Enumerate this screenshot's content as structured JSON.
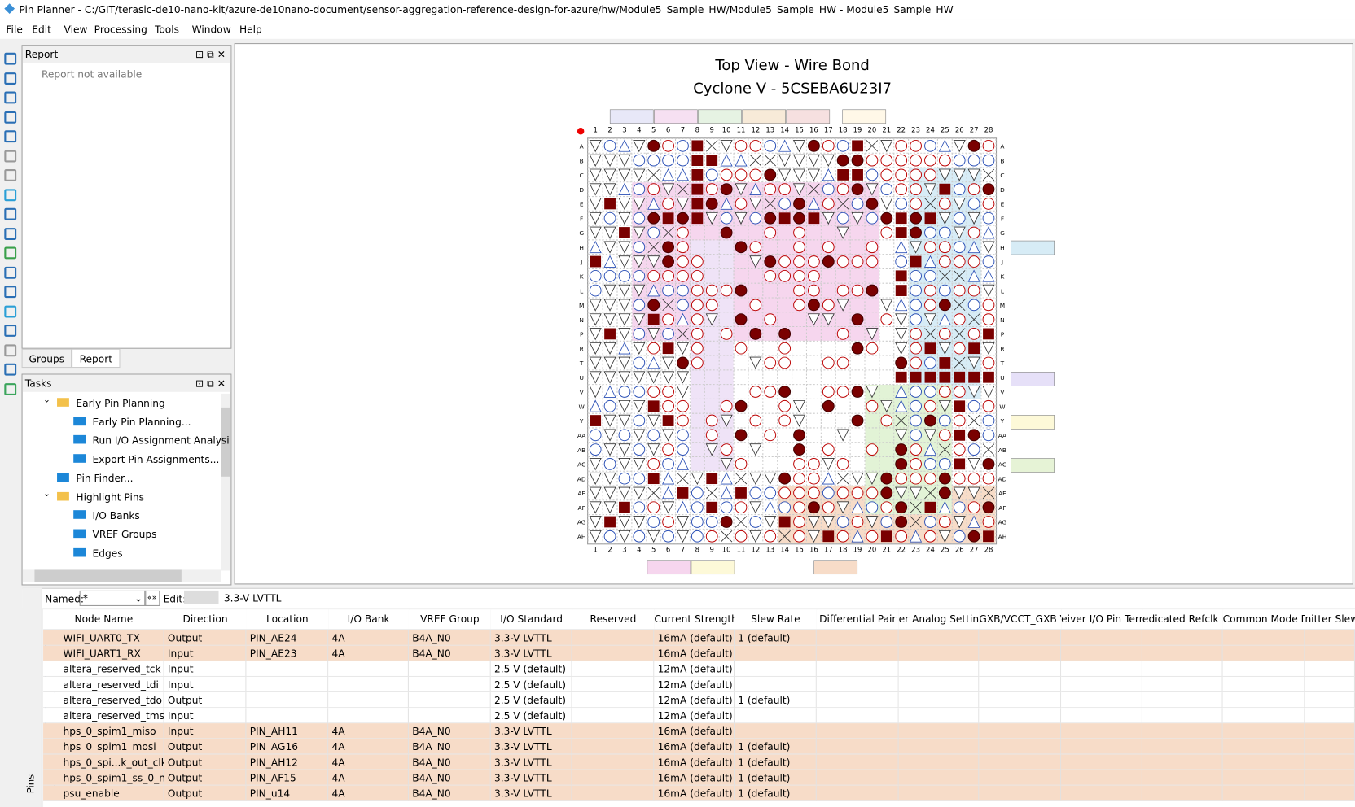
{
  "title_bar": "Pin Planner - C:/GIT/terasic-de10-nano-kit/azure-de10nano-document/sensor-aggregation-reference-design-for-azure/hw/Module5_Sample_HW/Module5_Sample_HW - Module5_Sample_HW",
  "menu": [
    "File",
    "Edit",
    "View",
    "Processing",
    "Tools",
    "Window",
    "Help"
  ],
  "report_panel": {
    "title": "Report",
    "message": "Report not available",
    "tabs": [
      "Groups",
      "Report"
    ]
  },
  "tasks_panel": {
    "title": "Tasks",
    "items": [
      {
        "label": "Early Pin Planning",
        "children": [
          "Early Pin Planning...",
          "Run I/O Assignment Analysi",
          "Export Pin Assignments..."
        ]
      },
      {
        "label": "Pin Finder..."
      },
      {
        "label": "Highlight Pins",
        "children": [
          "I/O Banks",
          "VREF Groups",
          "Edges"
        ]
      }
    ]
  },
  "package_view": {
    "title": "Top View - Wire Bond",
    "subtitle": "Cyclone V - 5CSEBA6U23I7",
    "columns": [
      "1",
      "2",
      "3",
      "4",
      "5",
      "6",
      "7",
      "8",
      "9",
      "10",
      "11",
      "12",
      "13",
      "14",
      "15",
      "16",
      "17",
      "18",
      "19",
      "20",
      "21",
      "22",
      "23",
      "24",
      "25",
      "26",
      "27",
      "28"
    ],
    "rows": [
      "A",
      "B",
      "C",
      "D",
      "E",
      "F",
      "G",
      "H",
      "J",
      "K",
      "L",
      "M",
      "N",
      "P",
      "R",
      "T",
      "U",
      "V",
      "W",
      "Y",
      "AA",
      "AB",
      "AC",
      "AD",
      "AE",
      "AF",
      "AG",
      "AH"
    ]
  },
  "filter_bar": {
    "named_label": "Named:",
    "named_value": "*",
    "edit_label": "Edit:",
    "edit_value": "3.3-V LVTTL"
  },
  "side_tab": "Pins",
  "table": {
    "columns": [
      "Node Name",
      "Direction",
      "Location",
      "I/O Bank",
      "VREF Group",
      "I/O Standard",
      "Reserved",
      "Current Strength",
      "Slew Rate",
      "Differential Pair",
      "er Analog Settings",
      "GXB/VCCT_GXB V",
      "eiver I/O Pin Term",
      "edicated Refclk Pi",
      "Common Mode D",
      "nitter Slew"
    ],
    "rows": [
      {
        "icon": "out",
        "highlighted": true,
        "cells": [
          "WIFI_UART0_TX",
          "Output",
          "PIN_AE24",
          "4A",
          "B4A_N0",
          "3.3-V LVTTL",
          null,
          "16mA (default)",
          "1 (default)"
        ]
      },
      {
        "icon": "in",
        "highlighted": true,
        "cells": [
          "WIFI_UART1_RX",
          "Input",
          "PIN_AE23",
          "4A",
          "B4A_N0",
          "3.3-V LVTTL",
          null,
          "16mA (default)",
          null
        ]
      },
      {
        "icon": "in",
        "highlighted": false,
        "cells": [
          "altera_reserved_tck",
          "Input",
          null,
          null,
          null,
          "2.5 V (default)",
          null,
          "12mA (default)",
          null
        ]
      },
      {
        "icon": "in",
        "highlighted": false,
        "cells": [
          "altera_reserved_tdi",
          "Input",
          null,
          null,
          null,
          "2.5 V (default)",
          null,
          "12mA (default)",
          null
        ]
      },
      {
        "icon": "out",
        "highlighted": false,
        "cells": [
          "altera_reserved_tdo",
          "Output",
          null,
          null,
          null,
          "2.5 V (default)",
          null,
          "12mA (default)",
          "1 (default)"
        ]
      },
      {
        "icon": "in",
        "highlighted": false,
        "cells": [
          "altera_reserved_tms",
          "Input",
          null,
          null,
          null,
          "2.5 V (default)",
          null,
          "12mA (default)",
          null
        ]
      },
      {
        "icon": "in",
        "highlighted": true,
        "cells": [
          "hps_0_spim1_miso",
          "Input",
          "PIN_AH11",
          "4A",
          "B4A_N0",
          "3.3-V LVTTL",
          null,
          "16mA (default)",
          null
        ]
      },
      {
        "icon": "out",
        "highlighted": true,
        "cells": [
          "hps_0_spim1_mosi",
          "Output",
          "PIN_AG16",
          "4A",
          "B4A_N0",
          "3.3-V LVTTL",
          null,
          "16mA (default)",
          "1 (default)"
        ]
      },
      {
        "icon": "out",
        "highlighted": true,
        "cells": [
          "hps_0_spi...k_out_clk",
          "Output",
          "PIN_AH12",
          "4A",
          "B4A_N0",
          "3.3-V LVTTL",
          null,
          "16mA (default)",
          "1 (default)"
        ]
      },
      {
        "icon": "out",
        "highlighted": true,
        "cells": [
          "hps_0_spim1_ss_0_n",
          "Output",
          "PIN_AF15",
          "4A",
          "B4A_N0",
          "3.3-V LVTTL",
          null,
          "16mA (default)",
          "1 (default)"
        ]
      },
      {
        "icon": "out",
        "highlighted": true,
        "cells": [
          "psu_enable",
          "Output",
          "PIN_u14",
          "4A",
          "B4A_N0",
          "3.3-V LVTTL",
          null,
          "16mA (default)",
          "1 (default)"
        ]
      }
    ]
  }
}
